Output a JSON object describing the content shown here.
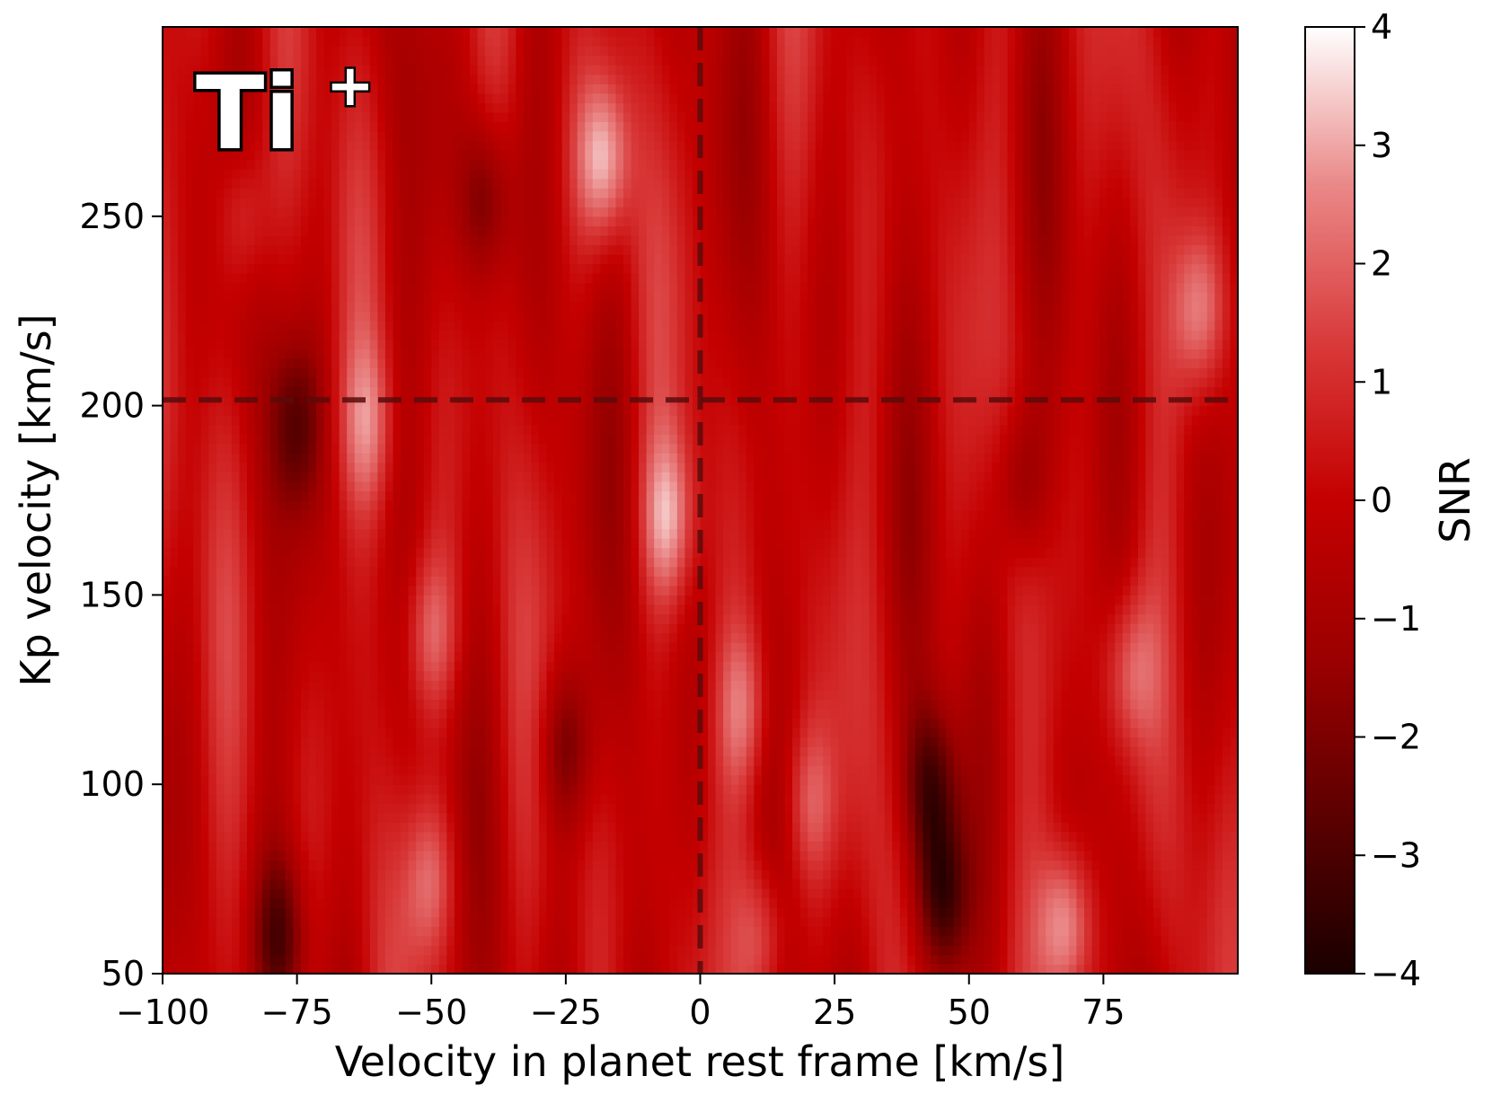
{
  "chart_data": {
    "type": "heatmap",
    "species_label": {
      "main": "Ti",
      "superscript": "+"
    },
    "xlabel": "Velocity in planet rest frame [km/s]",
    "ylabel": "Kp velocity [km/s]",
    "xlim": [
      -100,
      100
    ],
    "ylim": [
      50,
      300
    ],
    "xticks": [
      -100,
      -75,
      -50,
      -25,
      0,
      25,
      50,
      75
    ],
    "xtick_labels": [
      "−100",
      "−75",
      "−50",
      "−25",
      "0",
      "25",
      "50",
      "75"
    ],
    "yticks": [
      50,
      100,
      150,
      200,
      250
    ],
    "ytick_labels": [
      "50",
      "100",
      "150",
      "200",
      "250"
    ],
    "reference_lines": {
      "vertical_x": 0,
      "horizontal_y": 201.5,
      "style": "dashed",
      "color": "#5a0a0a"
    },
    "colorbar": {
      "label": "SNR",
      "vmin": -4,
      "vmax": 4,
      "ticks": [
        -4,
        -3,
        -2,
        -1,
        0,
        1,
        2,
        3,
        4
      ],
      "tick_labels": [
        "−4",
        "−3",
        "−2",
        "−1",
        "0",
        "1",
        "2",
        "3",
        "4"
      ],
      "colormap_stops": [
        "#1a0000",
        "#5c0000",
        "#9c0000",
        "#c40000",
        "#d93a3a",
        "#ea8888",
        "#ffffff"
      ]
    },
    "grid": false,
    "features": [
      {
        "x": -18,
        "y": 265,
        "snr": 3.2
      },
      {
        "x": -6,
        "y": 170,
        "snr": 2.6
      },
      {
        "x": 68,
        "y": 62,
        "snr": 3.4
      },
      {
        "x": 93,
        "y": 225,
        "snr": 2.4
      },
      {
        "x": 8,
        "y": 120,
        "snr": 2.0
      },
      {
        "x": -50,
        "y": 140,
        "snr": 2.0
      },
      {
        "x": -50,
        "y": 75,
        "snr": 2.0
      },
      {
        "x": 80,
        "y": 130,
        "snr": 2.0
      },
      {
        "x": 12,
        "y": 60,
        "snr": 2.2
      },
      {
        "x": 20,
        "y": 95,
        "snr": 1.8
      },
      {
        "x": -62,
        "y": 195,
        "snr": 1.8
      },
      {
        "x": -85,
        "y": 250,
        "snr": 1.6
      },
      {
        "x": 45,
        "y": 70,
        "snr": -3.5
      },
      {
        "x": 43,
        "y": 100,
        "snr": -3.0
      },
      {
        "x": -78,
        "y": 60,
        "snr": -2.6
      },
      {
        "x": -40,
        "y": 255,
        "snr": -2.2
      },
      {
        "x": -25,
        "y": 110,
        "snr": -2.2
      },
      {
        "x": -75,
        "y": 195,
        "snr": -2.0
      },
      {
        "x": 60,
        "y": 180,
        "snr": -1.8
      }
    ]
  }
}
